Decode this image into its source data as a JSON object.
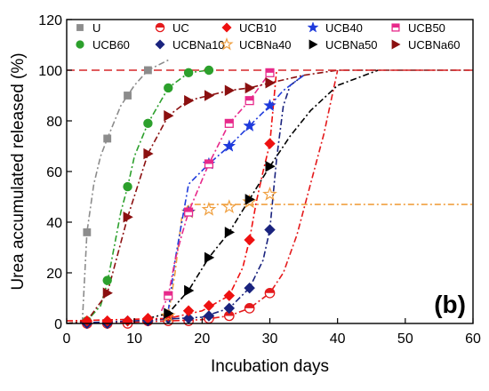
{
  "chart_data": {
    "type": "scatter",
    "xlabel": "Incubation days",
    "ylabel": "Urea accumulated released (%)",
    "panel_label": "(b)",
    "xlim": [
      0,
      60
    ],
    "ylim": [
      0,
      120
    ],
    "xticks": [
      0,
      10,
      20,
      30,
      40,
      50,
      60
    ],
    "yticks": [
      0,
      20,
      40,
      60,
      80,
      100,
      120
    ],
    "grid": false,
    "legend_position": "top",
    "reference_lines": [
      {
        "y": 100,
        "color": "#d62728",
        "style": "dashed"
      }
    ],
    "series": [
      {
        "name": "U",
        "marker": "square",
        "color": "#8c8c8c",
        "x": [
          3,
          6,
          9,
          12
        ],
        "y": [
          36,
          73,
          90,
          100
        ],
        "fit": {
          "x": [
            2.3,
            3,
            4,
            5,
            6,
            8,
            10,
            12,
            15
          ],
          "y": [
            0,
            36,
            55,
            66,
            73,
            86,
            94,
            100,
            104
          ]
        }
      },
      {
        "name": "UCB60",
        "marker": "circle",
        "color": "#2ca02c",
        "x": [
          3,
          6,
          9,
          12,
          15,
          18,
          21
        ],
        "y": [
          1,
          17,
          54,
          79,
          93,
          99,
          100
        ],
        "fit": {
          "x": [
            0,
            3,
            5,
            6,
            7,
            8,
            9,
            10,
            12,
            15,
            18,
            21
          ],
          "y": [
            0,
            1,
            7,
            16,
            30,
            44,
            54,
            66,
            79,
            93,
            99,
            100
          ]
        }
      },
      {
        "name": "UC",
        "marker": "half-circle",
        "color": "#e41a1c",
        "x": [
          3,
          6,
          9,
          12,
          15,
          18,
          21,
          24,
          27,
          30
        ],
        "y": [
          0,
          0,
          0,
          1,
          1,
          1,
          2,
          3,
          6,
          12
        ],
        "fit": {
          "x": [
            0,
            10,
            20,
            24,
            27,
            30,
            32,
            34,
            36,
            38,
            40
          ],
          "y": [
            0,
            0.5,
            1.5,
            3,
            6,
            12,
            20,
            35,
            55,
            75,
            100
          ]
        }
      },
      {
        "name": "UCBNa10",
        "marker": "diamond",
        "color": "#1a237e",
        "x": [
          3,
          6,
          9,
          12,
          15,
          18,
          21,
          24,
          27,
          30
        ],
        "y": [
          0,
          0,
          1,
          1,
          2,
          2,
          3,
          6,
          14,
          37
        ],
        "fit": {
          "x": [
            0,
            10,
            20,
            24,
            27,
            29,
            30,
            31,
            32,
            33,
            35
          ],
          "y": [
            0,
            1,
            2.5,
            6,
            14,
            25,
            37,
            65,
            86,
            94,
            98
          ]
        }
      },
      {
        "name": "UCB10",
        "marker": "diamond",
        "color": "#ee1111",
        "x": [
          3,
          6,
          9,
          12,
          15,
          18,
          21,
          24,
          27,
          30
        ],
        "y": [
          1,
          1,
          1,
          2,
          3,
          5,
          7,
          11,
          33,
          71
        ],
        "fit": {
          "x": [
            0,
            15,
            20,
            24,
            26,
            27,
            28,
            29,
            30,
            31
          ],
          "y": [
            1,
            2,
            5,
            11,
            22,
            33,
            48,
            60,
            71,
            100
          ]
        }
      },
      {
        "name": "UCBNa40",
        "marker": "star-open",
        "color": "#f0a040",
        "x": [
          15,
          18,
          21,
          24,
          27,
          30
        ],
        "y": [
          3,
          44,
          45,
          46,
          48,
          51
        ],
        "fit": {
          "x": [
            15,
            16,
            17,
            18,
            21,
            60
          ],
          "y": [
            3,
            20,
            42,
            47,
            47,
            47
          ]
        }
      },
      {
        "name": "UCB40",
        "marker": "star",
        "color": "#1f3bdc",
        "x": [
          18,
          21,
          24,
          27,
          30
        ],
        "y": [
          44,
          63,
          70,
          78,
          86
        ],
        "fit": {
          "x": [
            15,
            16,
            17,
            18,
            21,
            24,
            27,
            30,
            32,
            35
          ],
          "y": [
            5,
            25,
            40,
            55,
            63,
            70,
            78,
            86,
            92,
            98
          ]
        }
      },
      {
        "name": "UCBNa50",
        "marker": "triangle-right",
        "color": "#000000",
        "x": [
          15,
          18,
          21,
          24,
          27,
          30
        ],
        "y": [
          4,
          13,
          26,
          36,
          49,
          62
        ],
        "fit": {
          "x": [
            12,
            15,
            18,
            21,
            24,
            27,
            30,
            33,
            36,
            40,
            46
          ],
          "y": [
            2,
            4,
            13,
            26,
            36,
            49,
            62,
            74,
            84,
            94,
            100
          ]
        }
      },
      {
        "name": "UCB50",
        "marker": "square-half",
        "color": "#e7298a",
        "x": [
          15,
          18,
          21,
          24,
          27,
          30
        ],
        "y": [
          11,
          44,
          63,
          79,
          88,
          99
        ],
        "fit": {
          "x": [
            14,
            15,
            16,
            17,
            18,
            21,
            24,
            27,
            30
          ],
          "y": [
            5,
            11,
            25,
            35,
            44,
            63,
            79,
            88,
            99
          ]
        }
      },
      {
        "name": "UCBNa60",
        "marker": "triangle-right",
        "color": "#8b1010",
        "x": [
          6,
          9,
          12,
          15,
          18,
          21,
          24,
          27,
          30
        ],
        "y": [
          12,
          42,
          67,
          82,
          88,
          90,
          92,
          93,
          95
        ],
        "fit": {
          "x": [
            0,
            3,
            6,
            9,
            12,
            15,
            18,
            21,
            24,
            27,
            30,
            35,
            40,
            60
          ],
          "y": [
            0,
            1,
            12,
            42,
            67,
            82,
            88,
            90,
            92,
            93,
            95,
            98,
            100,
            100
          ]
        }
      }
    ],
    "legend_rows": [
      [
        "U",
        "UC",
        "UCB10",
        "UCB40",
        "UCB50"
      ],
      [
        "UCB60",
        "UCBNa10",
        "UCBNa40",
        "UCBNa50",
        "UCBNa60"
      ]
    ]
  }
}
